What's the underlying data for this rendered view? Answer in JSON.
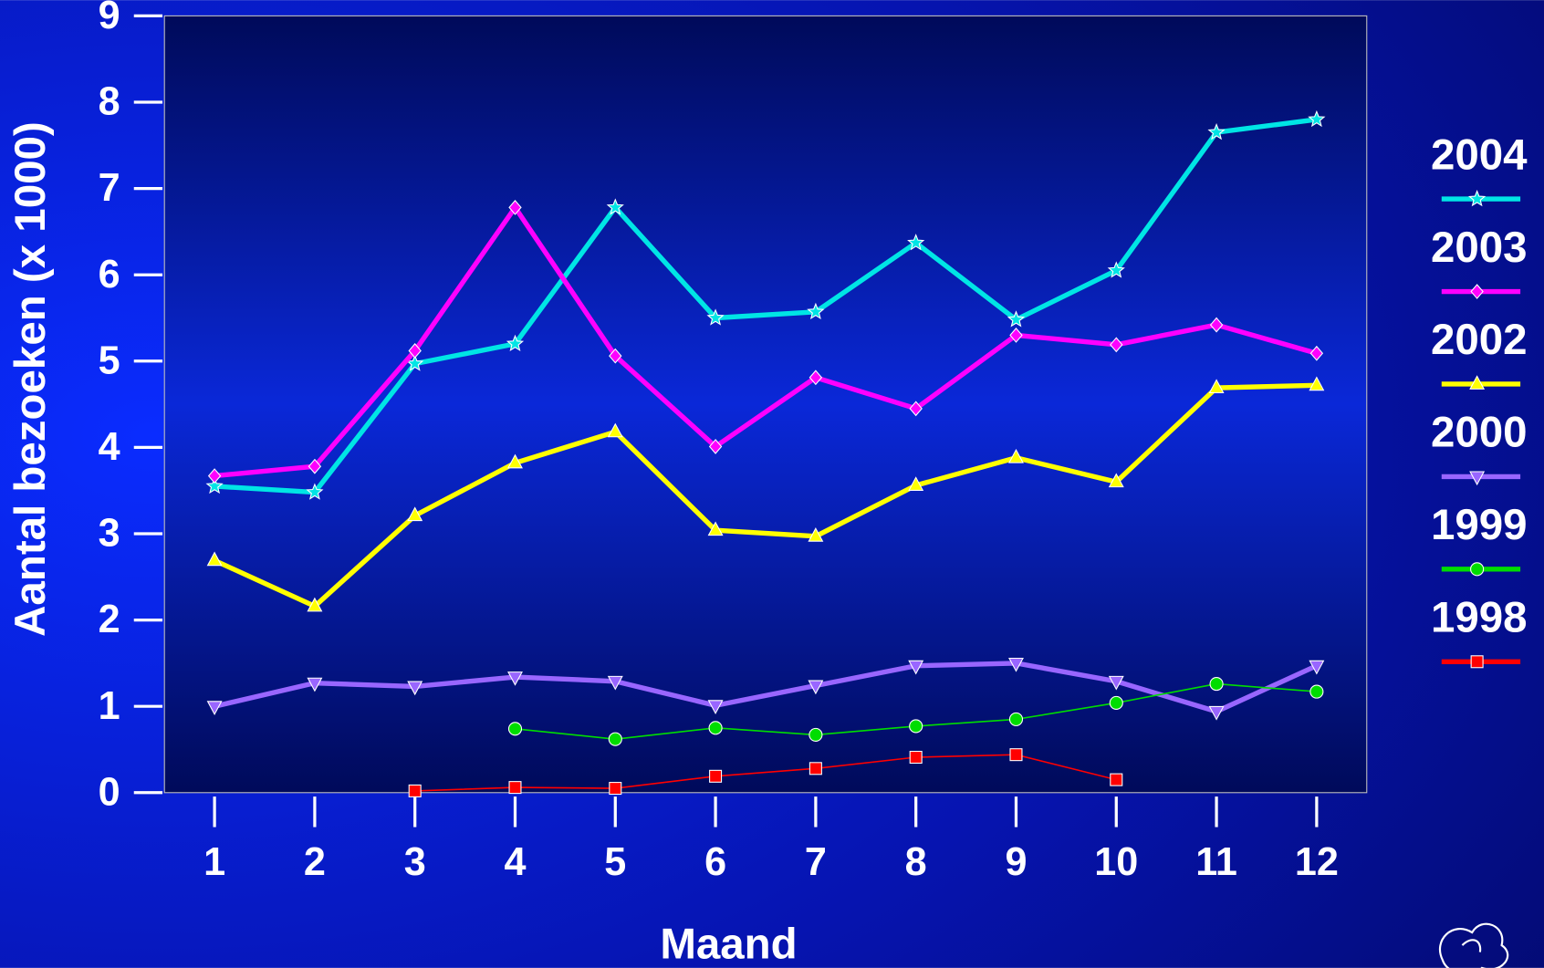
{
  "chart_data": {
    "type": "line",
    "x_label": "Maand",
    "y_label": "Aantal bezoeken (x 1000)",
    "x": [
      1,
      2,
      3,
      4,
      5,
      6,
      7,
      8,
      9,
      10,
      11,
      12
    ],
    "xlim": [
      0.5,
      12.5
    ],
    "xticks": [
      1,
      2,
      3,
      4,
      5,
      6,
      7,
      8,
      9,
      10,
      11,
      12
    ],
    "ylim": [
      0,
      9
    ],
    "yticks": [
      0,
      1,
      2,
      3,
      4,
      5,
      6,
      7,
      8,
      9
    ],
    "legend": "right",
    "series": [
      {
        "name": "2004",
        "color": "#00e5e5",
        "marker": "star",
        "line_width": 5,
        "values": [
          3.55,
          3.48,
          4.97,
          5.2,
          6.78,
          5.5,
          5.57,
          6.37,
          5.48,
          6.05,
          7.65,
          7.8
        ]
      },
      {
        "name": "2003",
        "color": "#ff00ff",
        "marker": "diamond",
        "line_width": 5,
        "values": [
          3.67,
          3.78,
          5.12,
          6.78,
          5.06,
          4.01,
          4.81,
          4.45,
          5.3,
          5.19,
          5.42,
          5.09
        ]
      },
      {
        "name": "2002",
        "color": "#ffff00",
        "marker": "triangle-up",
        "line_width": 5,
        "values": [
          2.69,
          2.16,
          3.21,
          3.82,
          4.18,
          3.04,
          2.97,
          3.56,
          3.88,
          3.6,
          4.69,
          4.72
        ]
      },
      {
        "name": "2000",
        "color": "#9966ff",
        "marker": "triangle-down",
        "line_width": 5,
        "values": [
          1.0,
          1.27,
          1.23,
          1.34,
          1.29,
          1.01,
          1.24,
          1.47,
          1.5,
          1.29,
          0.94,
          1.47
        ]
      },
      {
        "name": "1999",
        "color": "#00dd00",
        "marker": "circle",
        "line_width": 1.5,
        "values": [
          null,
          null,
          null,
          0.74,
          0.62,
          0.75,
          0.67,
          0.77,
          0.85,
          1.04,
          1.26,
          1.17
        ]
      },
      {
        "name": "1998",
        "color": "#ff0000",
        "marker": "square",
        "line_width": 1.5,
        "values": [
          null,
          null,
          0.02,
          0.06,
          0.05,
          0.19,
          0.28,
          0.41,
          0.44,
          0.15,
          null,
          null
        ]
      }
    ]
  }
}
